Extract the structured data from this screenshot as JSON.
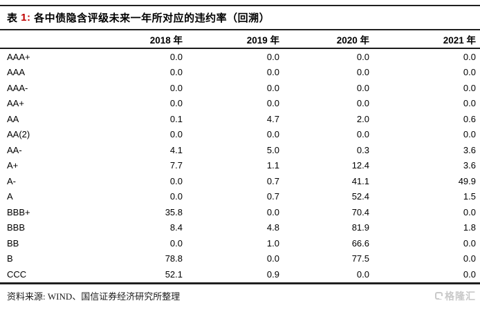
{
  "title": {
    "prefix": "表 ",
    "number": "1:",
    "text": " 各中债隐含评级未来一年所对应的违约率（回溯）"
  },
  "accent_red": "#c00000",
  "table": {
    "rating_header": "",
    "columns": [
      "2018 年",
      "2019 年",
      "2020 年",
      "2021 年"
    ],
    "rows": [
      {
        "rating": "AAA+",
        "values": [
          "0.0",
          "0.0",
          "0.0",
          "0.0"
        ]
      },
      {
        "rating": "AAA",
        "values": [
          "0.0",
          "0.0",
          "0.0",
          "0.0"
        ]
      },
      {
        "rating": "AAA-",
        "values": [
          "0.0",
          "0.0",
          "0.0",
          "0.0"
        ]
      },
      {
        "rating": "AA+",
        "values": [
          "0.0",
          "0.0",
          "0.0",
          "0.0"
        ]
      },
      {
        "rating": "AA",
        "values": [
          "0.1",
          "4.7",
          "2.0",
          "0.6"
        ]
      },
      {
        "rating": "AA(2)",
        "values": [
          "0.0",
          "0.0",
          "0.0",
          "0.0"
        ]
      },
      {
        "rating": "AA-",
        "values": [
          "4.1",
          "5.0",
          "0.3",
          "3.6"
        ]
      },
      {
        "rating": "A+",
        "values": [
          "7.7",
          "1.1",
          "12.4",
          "3.6"
        ]
      },
      {
        "rating": "A-",
        "values": [
          "0.0",
          "0.7",
          "41.1",
          "49.9"
        ]
      },
      {
        "rating": "A",
        "values": [
          "0.0",
          "0.7",
          "52.4",
          "1.5"
        ]
      },
      {
        "rating": "BBB+",
        "values": [
          "35.8",
          "0.0",
          "70.4",
          "0.0"
        ]
      },
      {
        "rating": "BBB",
        "values": [
          "8.4",
          "4.8",
          "81.9",
          "1.8"
        ]
      },
      {
        "rating": "BB",
        "values": [
          "0.0",
          "1.0",
          "66.6",
          "0.0"
        ]
      },
      {
        "rating": "B",
        "values": [
          "78.8",
          "0.0",
          "77.5",
          "0.0"
        ]
      },
      {
        "rating": "CCC",
        "values": [
          "52.1",
          "0.9",
          "0.0",
          "0.0"
        ]
      }
    ]
  },
  "footer": {
    "source": "资料来源: WIND、国信证券经济研究所整理",
    "logo_text": "格隆汇"
  },
  "chart_data": {
    "type": "table",
    "title": "表 1: 各中债隐含评级未来一年所对应的违约率（回溯）",
    "categories": [
      "AAA+",
      "AAA",
      "AAA-",
      "AA+",
      "AA",
      "AA(2)",
      "AA-",
      "A+",
      "A-",
      "A",
      "BBB+",
      "BBB",
      "BB",
      "B",
      "CCC"
    ],
    "series": [
      {
        "name": "2018 年",
        "values": [
          0.0,
          0.0,
          0.0,
          0.0,
          0.1,
          0.0,
          4.1,
          7.7,
          0.0,
          0.0,
          35.8,
          8.4,
          0.0,
          78.8,
          52.1
        ]
      },
      {
        "name": "2019 年",
        "values": [
          0.0,
          0.0,
          0.0,
          0.0,
          4.7,
          0.0,
          5.0,
          1.1,
          0.7,
          0.7,
          0.0,
          4.8,
          1.0,
          0.0,
          0.9
        ]
      },
      {
        "name": "2020 年",
        "values": [
          0.0,
          0.0,
          0.0,
          0.0,
          2.0,
          0.0,
          0.3,
          12.4,
          41.1,
          52.4,
          70.4,
          81.9,
          66.6,
          77.5,
          0.0
        ]
      },
      {
        "name": "2021 年",
        "values": [
          0.0,
          0.0,
          0.0,
          0.0,
          0.6,
          0.0,
          3.6,
          3.6,
          49.9,
          1.5,
          0.0,
          1.8,
          0.0,
          0.0,
          0.0
        ]
      }
    ],
    "source_note": "资料来源: WIND、国信证券经济研究所整理"
  }
}
